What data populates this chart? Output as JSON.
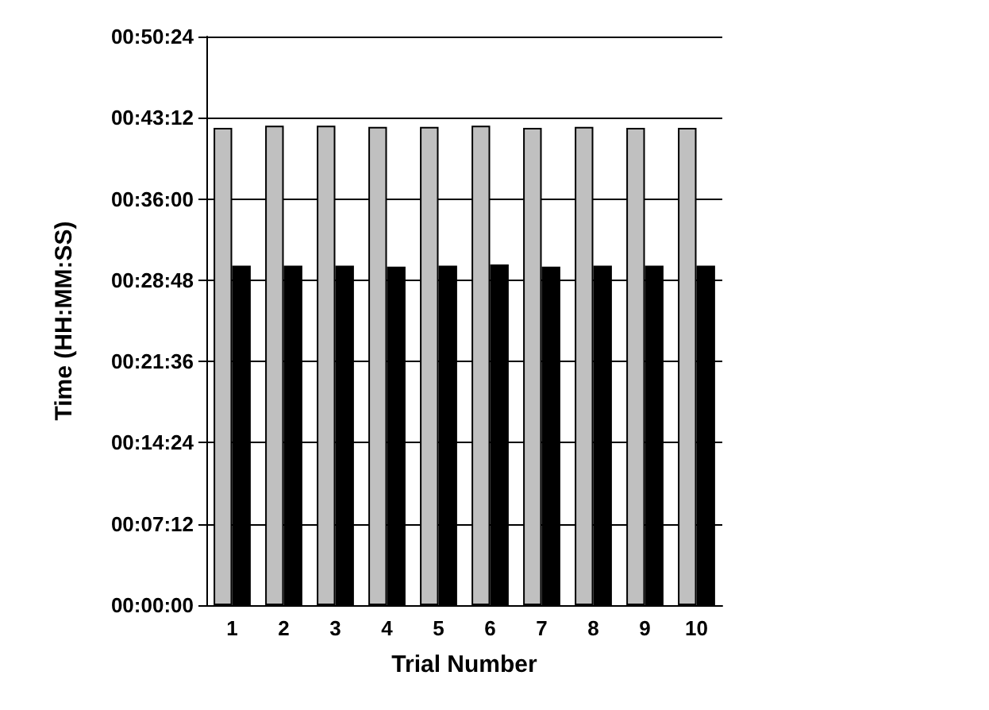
{
  "chart_data": {
    "type": "bar",
    "xlabel": "Trial Number",
    "ylabel": "Time (HH:MM:SS)",
    "categories": [
      "1",
      "2",
      "3",
      "4",
      "5",
      "6",
      "7",
      "8",
      "9",
      "10"
    ],
    "series": [
      {
        "color": "#c0c0c0",
        "values": [
          42.3,
          42.5,
          42.5,
          42.4,
          42.4,
          42.5,
          42.3,
          42.4,
          42.3,
          42.3
        ]
      },
      {
        "color": "#000000",
        "values": [
          30.1,
          30.1,
          30.1,
          30.0,
          30.1,
          30.2,
          30.0,
          30.1,
          30.1,
          30.1
        ]
      }
    ],
    "ylim": [
      0,
      50.4
    ],
    "yticks": [
      {
        "value": 0,
        "label": "00:00:00"
      },
      {
        "value": 7.2,
        "label": "00:07:12"
      },
      {
        "value": 14.4,
        "label": "00:14:24"
      },
      {
        "value": 21.6,
        "label": "00:21:36"
      },
      {
        "value": 28.8,
        "label": "00:28:48"
      },
      {
        "value": 36,
        "label": "00:36:00"
      },
      {
        "value": 43.2,
        "label": "00:43:12"
      },
      {
        "value": 50.4,
        "label": "00:50:24"
      }
    ],
    "grid": "y"
  }
}
